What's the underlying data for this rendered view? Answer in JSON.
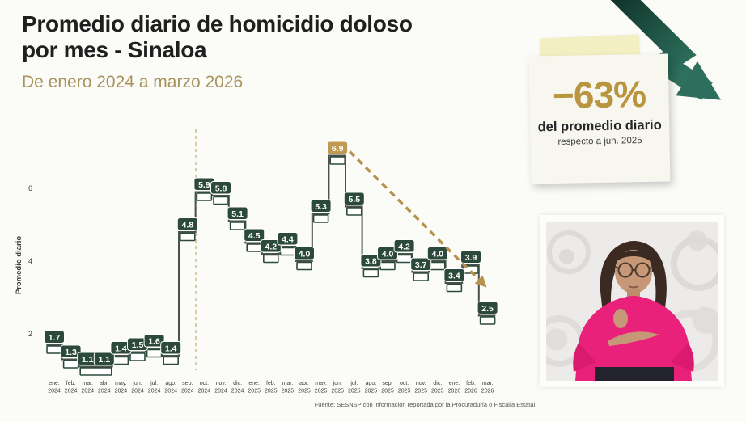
{
  "header": {
    "title_line1": "Promedio diario de homicidio doloso",
    "title_line2": "por mes - Sinaloa",
    "subtitle": "De enero 2024 a marzo 2026"
  },
  "callout_note": {
    "value": "−63%",
    "caption": "del promedio diario",
    "subcaption": "respecto a jun. 2025"
  },
  "chart_data": {
    "type": "line",
    "variant": "step",
    "ylabel": "Promedio diario",
    "yticks": [
      2,
      4,
      6
    ],
    "ylim": [
      1.0,
      8.0
    ],
    "grid": false,
    "legend": false,
    "categories": [
      "ene. 2024",
      "feb. 2024",
      "mar. 2024",
      "abr. 2024",
      "may. 2024",
      "jun. 2024",
      "jul. 2024",
      "ago. 2024",
      "sep. 2024",
      "oct. 2024",
      "nov. 2024",
      "dic. 2024",
      "ene. 2025",
      "feb. 2025",
      "mar. 2025",
      "abr. 2025",
      "may. 2025",
      "jun. 2025",
      "jul. 2025",
      "ago. 2025",
      "sep. 2025",
      "oct. 2025",
      "nov. 2025",
      "dic. 2025",
      "ene. 2026",
      "feb. 2026",
      "mar. 2026"
    ],
    "values": [
      1.7,
      1.3,
      1.1,
      1.1,
      1.4,
      1.5,
      1.6,
      1.4,
      4.8,
      5.9,
      5.8,
      5.1,
      4.5,
      4.2,
      4.4,
      4.0,
      5.3,
      6.9,
      5.5,
      3.8,
      4.0,
      4.2,
      3.7,
      4.0,
      3.4,
      3.9,
      2.5
    ],
    "highlight": {
      "category": "jun. 2025",
      "index": 17,
      "value": 6.9
    },
    "annotations": {
      "dashed_vertical_line_between": [
        "sep. 2024",
        "oct. 2024"
      ],
      "trend_arrow": {
        "from_index": 17,
        "to_index": 26,
        "style": "dashed-gold"
      }
    }
  },
  "footer": {
    "source": "Fuente: SESNSP con información reportada por la Procuraduría o Fiscalía Estatal."
  },
  "colors": {
    "title_text": "#1f1f1f",
    "subtitle_gold": "#a9935c",
    "label_box_green": "#2c4a3c",
    "highlight_gold": "#c09a52",
    "step_line": "#4a524d",
    "dashed_divider_gold": "#d3c191",
    "trend_arrow_gold": "#b5914b",
    "axis_text": "#3c3c3c",
    "decline_arrow_dark": "#0f2f26",
    "decline_arrow_light": "#35816a",
    "note_paper": "#f7f6ef",
    "note_tab_yellow": "#f2f0c3",
    "blouse_pink": "#e9217a"
  }
}
